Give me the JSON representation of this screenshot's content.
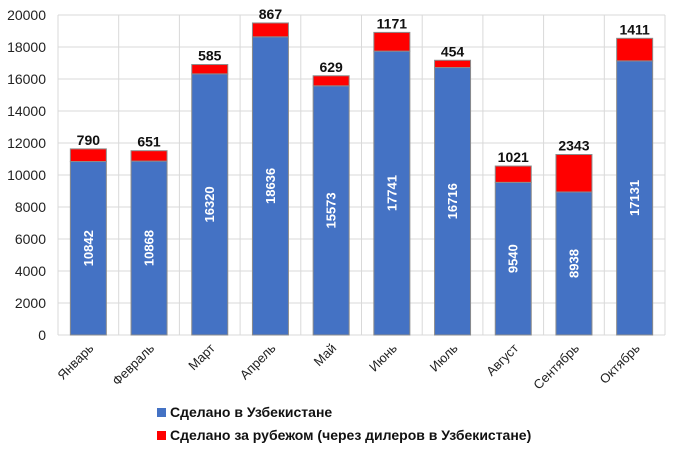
{
  "chart_data": {
    "type": "bar",
    "stacked": true,
    "title": "",
    "xlabel": "",
    "ylabel": "",
    "ylim": [
      0,
      20000
    ],
    "yticks": [
      0,
      2000,
      4000,
      6000,
      8000,
      10000,
      12000,
      14000,
      16000,
      18000,
      20000
    ],
    "grid": true,
    "legend_position": "bottom",
    "categories": [
      "Январь",
      "Февраль",
      "Март",
      "Апрель",
      "Май",
      "Июнь",
      "Июль",
      "Август",
      "Сентябрь",
      "Октябрь"
    ],
    "series": [
      {
        "name": "Сделано в Узбекистане",
        "color": "#4472C4",
        "values": [
          10842,
          10868,
          16320,
          18636,
          15573,
          17741,
          16716,
          9540,
          8938,
          17131
        ]
      },
      {
        "name": "Сделано за рубежом (через дилеров в Узбекистане)",
        "color": "#FF0000",
        "values": [
          790,
          651,
          585,
          867,
          629,
          1171,
          454,
          1021,
          2343,
          1411
        ]
      }
    ]
  }
}
